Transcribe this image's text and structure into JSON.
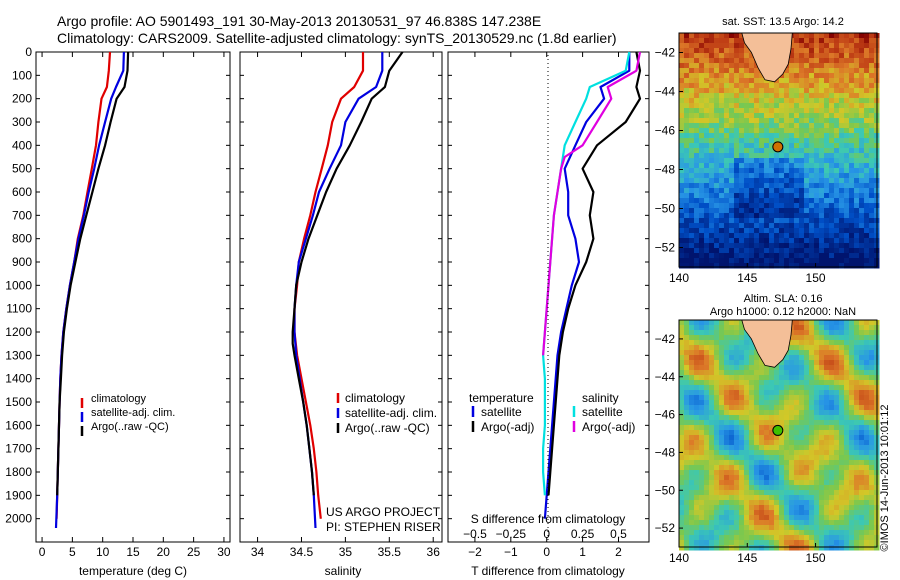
{
  "header": {
    "line1": "Argo profile: AO 5901493_191 30-May-2013 20130531_97 46.838S 147.238E",
    "line2": "Climatology: CARS2009. Satellite-adjusted climatology: synTS_20130529.nc (1.8d earlier)"
  },
  "credits": {
    "project": "US ARGO PROJECT",
    "pi": "PI: STEPHEN RISER",
    "imos": "©IMOS 14-Jun-2013 10:01:12"
  },
  "colors": {
    "climatology": "#e00000",
    "satellite": "#0000e0",
    "argo": "#000000",
    "sal_satellite": "#00e0e0",
    "sal_argo": "#e000e0",
    "land": "#f4bf98"
  },
  "chart_data": [
    {
      "type": "line",
      "id": "temperature",
      "xlabel": "temperature (deg C)",
      "ylabel": "",
      "xlim": [
        -1,
        31
      ],
      "ylim": [
        2100,
        0
      ],
      "xticks": [
        0,
        5,
        10,
        15,
        20,
        25,
        30
      ],
      "yticks": [
        0,
        100,
        200,
        300,
        400,
        500,
        600,
        700,
        800,
        900,
        1000,
        1100,
        1200,
        1300,
        1400,
        1500,
        1600,
        1700,
        1800,
        1900,
        2000
      ],
      "legend": [
        "climatology",
        "satellite-adj. clim.",
        "Argo(..raw -QC)"
      ],
      "series": [
        {
          "name": "climatology",
          "color": "#e00000",
          "points": [
            [
              11.2,
              0
            ],
            [
              11.0,
              80
            ],
            [
              10.7,
              150
            ],
            [
              9.8,
              200
            ],
            [
              9.3,
              300
            ],
            [
              8.9,
              400
            ],
            [
              8.2,
              500
            ],
            [
              7.5,
              600
            ],
            [
              6.8,
              700
            ],
            [
              5.9,
              800
            ],
            [
              5.3,
              900
            ],
            [
              4.6,
              1000
            ],
            [
              4.0,
              1100
            ],
            [
              3.5,
              1200
            ],
            [
              3.2,
              1300
            ],
            [
              3.0,
              1400
            ],
            [
              2.9,
              1500
            ],
            [
              2.8,
              1600
            ],
            [
              2.7,
              1700
            ],
            [
              2.6,
              1800
            ],
            [
              2.5,
              1900
            ],
            [
              2.4,
              2000
            ]
          ]
        },
        {
          "name": "satellite-adj. clim.",
          "color": "#0000e0",
          "points": [
            [
              13.5,
              0
            ],
            [
              13.4,
              80
            ],
            [
              12.2,
              150
            ],
            [
              11.4,
              200
            ],
            [
              10.4,
              300
            ],
            [
              9.4,
              400
            ],
            [
              8.6,
              500
            ],
            [
              7.7,
              600
            ],
            [
              6.9,
              700
            ],
            [
              6.0,
              800
            ],
            [
              5.3,
              900
            ],
            [
              4.6,
              1000
            ],
            [
              4.0,
              1100
            ],
            [
              3.5,
              1200
            ],
            [
              3.2,
              1300
            ],
            [
              3.0,
              1400
            ],
            [
              2.9,
              1500
            ],
            [
              2.8,
              1600
            ],
            [
              2.7,
              1700
            ],
            [
              2.6,
              1800
            ],
            [
              2.5,
              1900
            ],
            [
              2.3,
              2040
            ]
          ]
        },
        {
          "name": "Argo(..raw -QC)",
          "color": "#000000",
          "points": [
            [
              14.2,
              0
            ],
            [
              14.1,
              80
            ],
            [
              13.6,
              150
            ],
            [
              12.3,
              200
            ],
            [
              11.3,
              300
            ],
            [
              10.4,
              400
            ],
            [
              9.3,
              500
            ],
            [
              8.3,
              600
            ],
            [
              7.3,
              700
            ],
            [
              6.3,
              800
            ],
            [
              5.5,
              900
            ],
            [
              4.7,
              1000
            ],
            [
              4.1,
              1100
            ],
            [
              3.6,
              1200
            ],
            [
              3.3,
              1300
            ],
            [
              3.1,
              1400
            ],
            [
              2.9,
              1500
            ],
            [
              2.8,
              1600
            ],
            [
              2.7,
              1700
            ],
            [
              2.6,
              1800
            ],
            [
              2.5,
              1900
            ]
          ]
        }
      ]
    },
    {
      "type": "line",
      "id": "salinity",
      "xlabel": "salinity",
      "ylabel": "",
      "xlim": [
        33.8,
        36.1
      ],
      "ylim": [
        2100,
        0
      ],
      "xticks": [
        34,
        34.5,
        35,
        35.5,
        36
      ],
      "legend": [
        "climatology",
        "satellite-adj. clim.",
        "Argo(..raw -QC)"
      ],
      "series": [
        {
          "name": "climatology",
          "color": "#e00000",
          "points": [
            [
              35.2,
              0
            ],
            [
              35.2,
              80
            ],
            [
              35.1,
              150
            ],
            [
              34.95,
              200
            ],
            [
              34.85,
              300
            ],
            [
              34.8,
              400
            ],
            [
              34.73,
              500
            ],
            [
              34.66,
              600
            ],
            [
              34.6,
              700
            ],
            [
              34.53,
              800
            ],
            [
              34.47,
              900
            ],
            [
              34.45,
              1000
            ],
            [
              34.42,
              1100
            ],
            [
              34.42,
              1200
            ],
            [
              34.45,
              1300
            ],
            [
              34.5,
              1400
            ],
            [
              34.55,
              1500
            ],
            [
              34.6,
              1600
            ],
            [
              34.64,
              1700
            ],
            [
              34.67,
              1800
            ],
            [
              34.69,
              1900
            ],
            [
              34.72,
              2000
            ]
          ]
        },
        {
          "name": "satellite-adj. clim.",
          "color": "#0000e0",
          "points": [
            [
              35.42,
              0
            ],
            [
              35.42,
              80
            ],
            [
              35.35,
              150
            ],
            [
              35.15,
              200
            ],
            [
              35.0,
              300
            ],
            [
              34.95,
              400
            ],
            [
              34.82,
              500
            ],
            [
              34.7,
              600
            ],
            [
              34.63,
              700
            ],
            [
              34.55,
              800
            ],
            [
              34.47,
              900
            ],
            [
              34.44,
              1000
            ],
            [
              34.42,
              1100
            ],
            [
              34.42,
              1200
            ],
            [
              34.44,
              1300
            ],
            [
              34.48,
              1400
            ],
            [
              34.52,
              1500
            ],
            [
              34.56,
              1600
            ],
            [
              34.59,
              1700
            ],
            [
              34.62,
              1800
            ],
            [
              34.64,
              1900
            ],
            [
              34.66,
              2040
            ]
          ]
        },
        {
          "name": "Argo(..raw -QC)",
          "color": "#000000",
          "points": [
            [
              35.65,
              0
            ],
            [
              35.5,
              80
            ],
            [
              35.45,
              150
            ],
            [
              35.3,
              200
            ],
            [
              35.18,
              300
            ],
            [
              35.05,
              400
            ],
            [
              34.9,
              500
            ],
            [
              34.78,
              600
            ],
            [
              34.68,
              700
            ],
            [
              34.58,
              800
            ],
            [
              34.5,
              900
            ],
            [
              34.44,
              1000
            ],
            [
              34.42,
              1100
            ],
            [
              34.4,
              1200
            ],
            [
              34.4,
              1250
            ],
            [
              34.42,
              1300
            ],
            [
              34.47,
              1400
            ],
            [
              34.52,
              1500
            ],
            [
              34.56,
              1600
            ],
            [
              34.59,
              1700
            ],
            [
              34.62,
              1800
            ],
            [
              34.64,
              1900
            ]
          ]
        }
      ]
    },
    {
      "type": "line",
      "id": "difference",
      "xlabel": "T difference from climatology",
      "xlabel_top": "S difference from climatology",
      "ylim": [
        2100,
        0
      ],
      "xlim": [
        -2.75,
        2.85
      ],
      "xticks": [
        -2,
        -1,
        0,
        1,
        2
      ],
      "xticks_s": [
        -0.5,
        -0.25,
        0,
        0.25,
        0.5
      ],
      "legend_temperature_title": "temperature",
      "legend_salinity_title": "salinity",
      "legend": [
        "satellite",
        "Argo(-adj)"
      ],
      "series": [
        {
          "name": "temperature satellite",
          "color": "#0000e0",
          "points": [
            [
              2.3,
              0
            ],
            [
              2.3,
              80
            ],
            [
              1.5,
              150
            ],
            [
              1.6,
              200
            ],
            [
              1.1,
              300
            ],
            [
              0.8,
              400
            ],
            [
              0.5,
              500
            ],
            [
              0.6,
              600
            ],
            [
              0.6,
              700
            ],
            [
              0.8,
              800
            ],
            [
              0.9,
              900
            ],
            [
              0.7,
              1000
            ],
            [
              0.55,
              1100
            ],
            [
              0.4,
              1200
            ],
            [
              0.3,
              1300
            ],
            [
              0.25,
              1400
            ],
            [
              0.2,
              1500
            ],
            [
              0.15,
              1600
            ],
            [
              0.1,
              1700
            ],
            [
              0.05,
              1800
            ],
            [
              0.0,
              1900
            ],
            [
              -0.05,
              2000
            ]
          ]
        },
        {
          "name": "temperature Argo(-adj)",
          "color": "#000000",
          "points": [
            [
              2.5,
              0
            ],
            [
              2.6,
              80
            ],
            [
              2.5,
              150
            ],
            [
              2.6,
              200
            ],
            [
              2.2,
              300
            ],
            [
              1.4,
              400
            ],
            [
              1.0,
              500
            ],
            [
              1.3,
              600
            ],
            [
              1.2,
              700
            ],
            [
              1.3,
              800
            ],
            [
              1.1,
              900
            ],
            [
              0.8,
              1000
            ],
            [
              0.6,
              1100
            ],
            [
              0.45,
              1200
            ],
            [
              0.35,
              1300
            ],
            [
              0.3,
              1400
            ],
            [
              0.25,
              1500
            ],
            [
              0.2,
              1600
            ],
            [
              0.15,
              1700
            ],
            [
              0.1,
              1800
            ],
            [
              0.05,
              1900
            ]
          ]
        },
        {
          "name": "salinity satellite",
          "color": "#00e0e0",
          "points": [
            [
              2.3,
              0
            ],
            [
              2.2,
              80
            ],
            [
              1.2,
              150
            ],
            [
              1.1,
              200
            ],
            [
              0.8,
              300
            ],
            [
              0.5,
              400
            ],
            [
              0.4,
              500
            ],
            [
              0.3,
              600
            ],
            [
              0.2,
              700
            ],
            [
              0.15,
              800
            ],
            [
              0.1,
              900
            ],
            [
              0.05,
              1000
            ],
            [
              0.0,
              1100
            ],
            [
              -0.05,
              1200
            ],
            [
              -0.1,
              1300
            ],
            [
              -0.05,
              1400
            ],
            [
              -0.05,
              1500
            ],
            [
              -0.05,
              1600
            ],
            [
              -0.1,
              1700
            ],
            [
              -0.1,
              1800
            ],
            [
              -0.05,
              1900
            ]
          ]
        },
        {
          "name": "salinity Argo(-adj)",
          "color": "#e000e0",
          "points": [
            [
              2.6,
              0
            ],
            [
              2.5,
              80
            ],
            [
              1.7,
              150
            ],
            [
              1.8,
              200
            ],
            [
              1.4,
              300
            ],
            [
              1.0,
              400
            ],
            [
              0.5,
              450
            ],
            [
              0.4,
              500
            ],
            [
              0.2,
              700
            ],
            [
              0.1,
              900
            ],
            [
              0.0,
              1100
            ],
            [
              -0.05,
              1200
            ],
            [
              -0.1,
              1300
            ]
          ]
        }
      ]
    },
    {
      "type": "heatmap",
      "id": "sst_map",
      "title": "sat. SST: 13.5 Argo: 14.2",
      "xlim": [
        140,
        154.5
      ],
      "ylim": [
        -53,
        -41
      ],
      "xticks": [
        140,
        145,
        150
      ],
      "yticks": [
        -42,
        -44,
        -46,
        -48,
        -50,
        -52
      ],
      "marker": {
        "lon": 147.238,
        "lat": -46.838,
        "color": "#d07000"
      }
    },
    {
      "type": "heatmap",
      "id": "sla_map",
      "title": "Altim. SLA: 0.16",
      "subtitle": "Argo h1000: 0.12 h2000: NaN",
      "xlim": [
        140,
        154.5
      ],
      "ylim": [
        -53,
        -41
      ],
      "xticks": [
        140,
        145,
        150
      ],
      "yticks": [
        -42,
        -44,
        -46,
        -48,
        -50,
        -52
      ],
      "marker": {
        "lon": 147.238,
        "lat": -46.838,
        "color": "#40c000"
      }
    }
  ]
}
